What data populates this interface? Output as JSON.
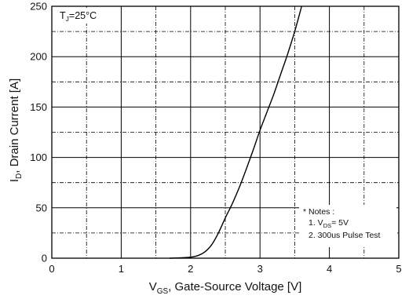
{
  "chart_data": {
    "type": "line",
    "xlabel_main": "V",
    "xlabel_sub": "GS",
    "xlabel_rest": ", Gate-Source Voltage [V]",
    "ylabel_main": "I",
    "ylabel_sub": "D",
    "ylabel_rest": ", Drain Current [A]",
    "xlim": [
      0,
      5
    ],
    "ylim": [
      0,
      250
    ],
    "x_ticks": [
      0,
      1,
      2,
      3,
      4,
      5
    ],
    "y_ticks": [
      0,
      50,
      100,
      150,
      200,
      250
    ],
    "x_tick_labels": [
      "0",
      "1",
      "2",
      "3",
      "4",
      "5"
    ],
    "y_tick_labels": [
      "0",
      "50",
      "100",
      "150",
      "200",
      "250"
    ],
    "x_minor_grid": [
      0.5,
      1.5,
      2.5,
      3.5,
      4.5
    ],
    "y_minor_grid": [
      25,
      75,
      125,
      175,
      225
    ],
    "grid": true,
    "series": [
      {
        "x": [
          1.7,
          1.9,
          2.0,
          2.1,
          2.2,
          2.3,
          2.4,
          2.5,
          2.6,
          2.7,
          2.8,
          2.9,
          3.0,
          3.1,
          3.2,
          3.3,
          3.4,
          3.5,
          3.6
        ],
        "y": [
          0,
          0.5,
          1,
          2.5,
          6,
          13,
          25,
          40,
          54,
          70,
          88,
          107,
          127,
          145,
          163,
          183,
          203,
          225,
          250
        ]
      }
    ],
    "annotations": {
      "tj_main": "T",
      "tj_sub": "J",
      "tj_rest": "=25°C",
      "notes_title": "* Notes :",
      "note1_main": "1. V",
      "note1_sub": "DS",
      "note1_rest": "= 5V",
      "note2": "2. 300us Pulse Test"
    }
  }
}
